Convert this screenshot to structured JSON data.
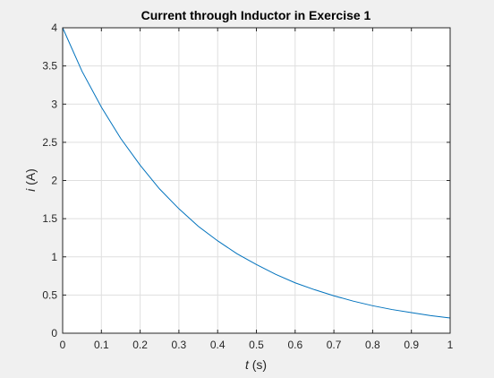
{
  "chart_data": {
    "type": "line",
    "title": "Current through Inductor in Exercise 1",
    "xlabel": {
      "symbol": "t",
      "unit": " (s)"
    },
    "ylabel": {
      "symbol": "i",
      "unit": " (A)"
    },
    "xlim": [
      0,
      1
    ],
    "ylim": [
      0,
      4
    ],
    "xticks": [
      0,
      0.1,
      0.2,
      0.3,
      0.4,
      0.5,
      0.6,
      0.7,
      0.8,
      0.9,
      1
    ],
    "xtick_labels": [
      "0",
      "0.1",
      "0.2",
      "0.3",
      "0.4",
      "0.5",
      "0.6",
      "0.7",
      "0.8",
      "0.9",
      "1"
    ],
    "yticks": [
      0,
      0.5,
      1,
      1.5,
      2,
      2.5,
      3,
      3.5,
      4
    ],
    "ytick_labels": [
      "0",
      "0.5",
      "1",
      "1.5",
      "2",
      "2.5",
      "3",
      "3.5",
      "4"
    ],
    "grid": true,
    "series": [
      {
        "color": "#0072bd",
        "x": [
          0,
          0.05,
          0.1,
          0.15,
          0.2,
          0.25,
          0.3,
          0.35,
          0.4,
          0.45,
          0.5,
          0.55,
          0.6,
          0.65,
          0.7,
          0.75,
          0.8,
          0.85,
          0.9,
          0.95,
          1
        ],
        "y": [
          4.0,
          3.43,
          2.96,
          2.55,
          2.2,
          1.89,
          1.63,
          1.4,
          1.21,
          1.04,
          0.9,
          0.77,
          0.66,
          0.57,
          0.49,
          0.42,
          0.36,
          0.31,
          0.27,
          0.23,
          0.2
        ]
      }
    ]
  }
}
